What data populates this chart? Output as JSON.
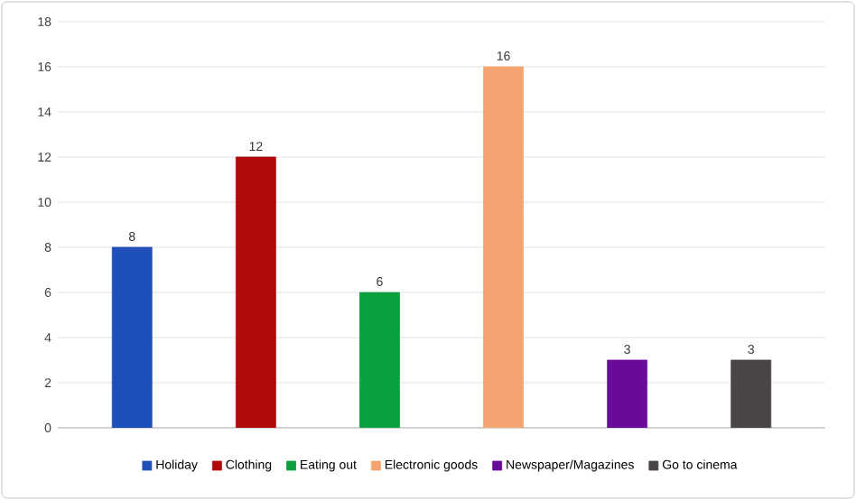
{
  "chart_data": {
    "type": "bar",
    "categories": [
      null,
      null,
      null,
      null,
      null,
      null
    ],
    "series": [
      {
        "name": "Holiday",
        "color": "#1f4fb8",
        "values": [
          8,
          null,
          null,
          null,
          null,
          null
        ]
      },
      {
        "name": "Clothing",
        "color": "#b00a0a",
        "values": [
          null,
          12,
          null,
          null,
          null,
          null
        ]
      },
      {
        "name": "Eating out",
        "color": "#0aa040",
        "values": [
          null,
          null,
          6,
          null,
          null,
          null
        ]
      },
      {
        "name": "Electronic goods",
        "color": "#f4a470",
        "values": [
          null,
          null,
          null,
          16,
          null,
          null
        ]
      },
      {
        "name": "Newspaper/Magazines",
        "color": "#6a0a9a",
        "values": [
          null,
          null,
          null,
          null,
          3,
          null
        ]
      },
      {
        "name": "Go to cinema",
        "color": "#4a4444",
        "values": [
          null,
          null,
          null,
          null,
          null,
          3
        ]
      }
    ],
    "ylim": [
      0,
      18
    ],
    "yticks": [
      0,
      2,
      4,
      6,
      8,
      10,
      12,
      14,
      16,
      18
    ],
    "grid": "y",
    "legend": "bottom",
    "data_labels": true
  }
}
